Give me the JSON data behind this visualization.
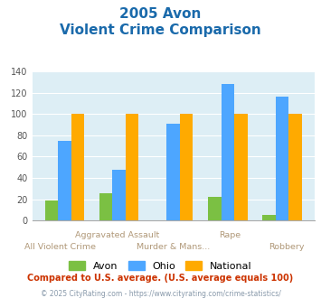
{
  "title_line1": "2005 Avon",
  "title_line2": "Violent Crime Comparison",
  "avon": [
    19,
    26,
    0,
    22,
    5
  ],
  "ohio": [
    75,
    48,
    91,
    128,
    116
  ],
  "national": [
    100,
    100,
    100,
    100,
    100
  ],
  "avon_color": "#7bc043",
  "ohio_color": "#4da6ff",
  "national_color": "#ffaa00",
  "bg_color": "#ddeef5",
  "ylim": [
    0,
    140
  ],
  "yticks": [
    0,
    20,
    40,
    60,
    80,
    100,
    120,
    140
  ],
  "title_color": "#1a6aab",
  "xlabel_top_color": "#b09878",
  "xlabel_bot_color": "#b09878",
  "footnote1": "Compared to U.S. average. (U.S. average equals 100)",
  "footnote2": "© 2025 CityRating.com - https://www.cityrating.com/crime-statistics/",
  "footnote1_color": "#cc3300",
  "footnote2_color": "#8899aa",
  "legend_labels": [
    "Avon",
    "Ohio",
    "National"
  ]
}
